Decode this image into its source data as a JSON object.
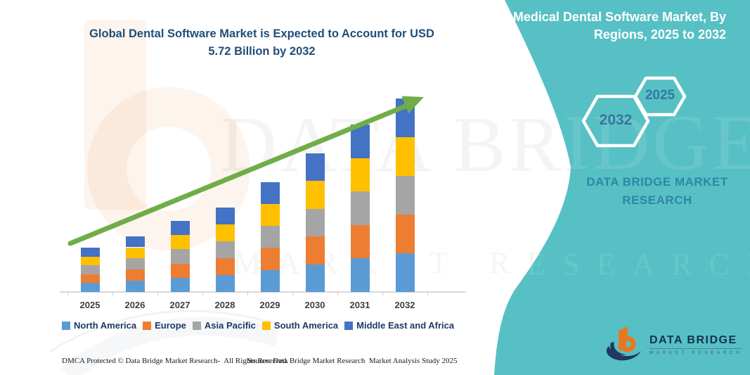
{
  "header": {
    "title_lines": [
      "Global Dental Software Market is Expected to Account for USD",
      "5.72 Billion by 2032"
    ]
  },
  "panel": {
    "accent_color": "#57C0C4",
    "title_lines": [
      "Medical Dental Software Market, By",
      "Regions, 2025 to 2032"
    ],
    "hexagons": [
      {
        "label": "2032"
      },
      {
        "label": "2025"
      }
    ],
    "brand_lines": [
      "DATA BRIDGE MARKET",
      "RESEARCH"
    ],
    "logo": {
      "name": "DATA BRIDGE",
      "subtitle": "MARKET RESEARCH"
    }
  },
  "watermark": {
    "line1": "DATA BRIDGE",
    "line2": "MARKET RESEARCH"
  },
  "footer": {
    "left": "DMCA Protected © Data Bridge Market Research-  All Rights Reserved.",
    "right": "Source: Data Bridge Market Research  Market Analysis Study 2025"
  },
  "chart_data": {
    "type": "bar",
    "subtype": "stacked-column",
    "title": "Global Dental Software Market is Expected to Account for USD 5.72 Billion by 2032",
    "unit": "USD Billion",
    "categories": [
      "2025",
      "2026",
      "2027",
      "2028",
      "2029",
      "2030",
      "2031",
      "2032"
    ],
    "series": [
      {
        "name": "North America",
        "color": "#5B9BD5",
        "values": [
          0.26,
          0.33,
          0.42,
          0.5,
          0.65,
          0.82,
          0.99,
          1.144
        ]
      },
      {
        "name": "Europe",
        "color": "#ED7D31",
        "values": [
          0.26,
          0.33,
          0.42,
          0.5,
          0.65,
          0.82,
          0.99,
          1.144
        ]
      },
      {
        "name": "Asia Pacific",
        "color": "#A5A5A5",
        "values": [
          0.26,
          0.33,
          0.42,
          0.5,
          0.65,
          0.82,
          0.99,
          1.144
        ]
      },
      {
        "name": "South America",
        "color": "#FFC000",
        "values": [
          0.26,
          0.33,
          0.42,
          0.5,
          0.65,
          0.82,
          0.99,
          1.144
        ]
      },
      {
        "name": "Middle East and Africa",
        "color": "#4472C4",
        "values": [
          0.26,
          0.33,
          0.42,
          0.5,
          0.65,
          0.82,
          0.99,
          1.144
        ]
      }
    ],
    "totals": [
      1.3,
      1.65,
      2.1,
      2.5,
      3.25,
      4.1,
      4.95,
      5.72
    ],
    "y_axis_visible": false,
    "grid": false,
    "legend_position": "bottom",
    "trend_arrow": {
      "present": true,
      "color": "#70AD47",
      "direction": "up-right"
    }
  }
}
